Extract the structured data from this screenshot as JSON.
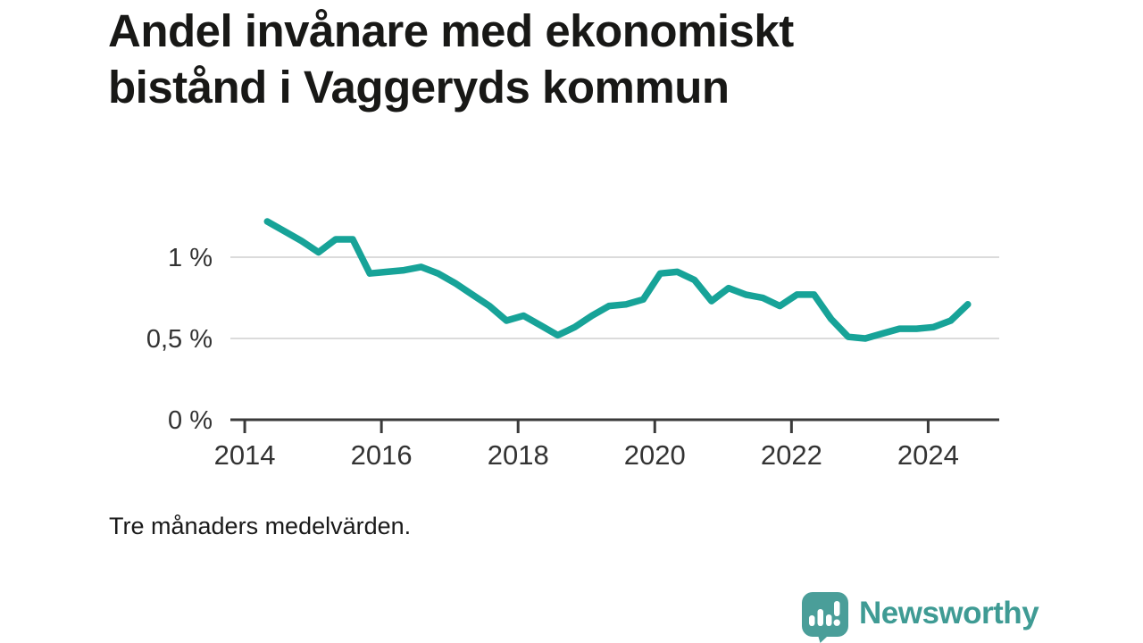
{
  "title_lines": [
    "Andel invånare med ekonomiskt",
    "bistånd i Vaggeryds kommun"
  ],
  "footnote": "Tre månaders medelvärden.",
  "brand": {
    "name": "Newsworthy",
    "color": "#3F9B94",
    "icon": "bar-chart-speech-bubble-icon",
    "icon_color": "#4A9E99"
  },
  "colors": {
    "line": "#17A398",
    "grid": "#DBDBDB",
    "axis": "#3A3A3A",
    "tick_text": "#333333",
    "background": "#FFFFFF"
  },
  "chart_data": {
    "type": "line",
    "title": "Andel invånare med ekonomiskt bistånd i Vaggeryds kommun",
    "subtitle": "Tre månaders medelvärden.",
    "series": [
      {
        "name": "Andel invånare med ekonomiskt bistånd, Vaggeryds kommun",
        "x": [
          2014.33,
          2014.58,
          2014.83,
          2015.08,
          2015.33,
          2015.58,
          2015.83,
          2016.08,
          2016.33,
          2016.58,
          2016.83,
          2017.08,
          2017.33,
          2017.58,
          2017.83,
          2018.08,
          2018.33,
          2018.58,
          2018.83,
          2019.08,
          2019.33,
          2019.58,
          2019.83,
          2020.08,
          2020.33,
          2020.58,
          2020.83,
          2021.08,
          2021.33,
          2021.58,
          2021.83,
          2022.08,
          2022.33,
          2022.58,
          2022.83,
          2023.08,
          2023.33,
          2023.58,
          2023.83,
          2024.08,
          2024.33,
          2024.58
        ],
        "values": [
          1.22,
          1.16,
          1.1,
          1.03,
          1.11,
          1.11,
          0.9,
          0.91,
          0.92,
          0.94,
          0.9,
          0.84,
          0.77,
          0.7,
          0.61,
          0.64,
          0.58,
          0.52,
          0.57,
          0.64,
          0.7,
          0.71,
          0.74,
          0.9,
          0.91,
          0.86,
          0.73,
          0.81,
          0.77,
          0.75,
          0.7,
          0.77,
          0.77,
          0.62,
          0.51,
          0.5,
          0.53,
          0.56,
          0.56,
          0.57,
          0.61,
          0.71
        ]
      }
    ],
    "unit": "%",
    "xlim": [
      2013.79,
      2025.04
    ],
    "ylim": [
      0,
      1.25
    ],
    "x_ticks": [
      {
        "value": 2014,
        "label": "2014"
      },
      {
        "value": 2016,
        "label": "2016"
      },
      {
        "value": 2018,
        "label": "2018"
      },
      {
        "value": 2020,
        "label": "2020"
      },
      {
        "value": 2022,
        "label": "2022"
      },
      {
        "value": 2024,
        "label": "2024"
      }
    ],
    "y_ticks": [
      {
        "value": 0,
        "label": "0 %",
        "gridline": false
      },
      {
        "value": 0.5,
        "label": "0,5 %",
        "gridline": true
      },
      {
        "value": 1,
        "label": "1 %",
        "gridline": true
      }
    ],
    "grid": "horizontal-only",
    "legend": "none",
    "line_color": "#17A398"
  }
}
